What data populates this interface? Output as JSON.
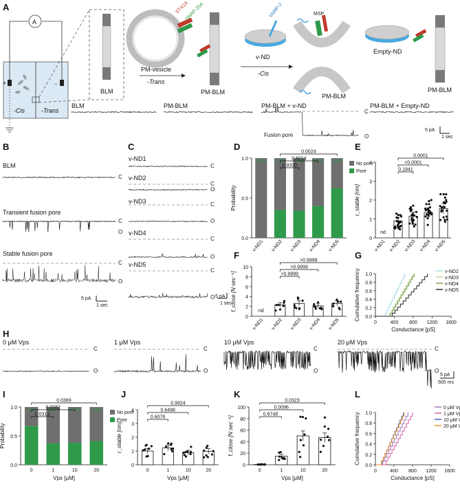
{
  "panels": {
    "a": "A",
    "b": "B",
    "c": "C",
    "d": "D",
    "e": "E",
    "f": "F",
    "g": "G",
    "h": "H",
    "i": "I",
    "j": "J",
    "k": "K",
    "l": "L"
  },
  "A": {
    "ammeter": "A",
    "plus": "+",
    "minus": "-",
    "cis": "-Cis",
    "trans": "-Trans",
    "blm": "BLM",
    "stx1a": "STX1A",
    "snap25a": "SNAP-25A",
    "pm_vesicle": "PM-vesicle",
    "trans_arrow": "-Trans",
    "pm_blm": "PM-BLM",
    "vamp2": "VAMP-2",
    "msp": "MSP",
    "v_nd": "v-ND",
    "cis_arrow": "-Cis",
    "empty_nd": "Empty-ND",
    "trace_labels": [
      "BLM",
      "PM-BLM",
      "PM-BLM + v-ND",
      "PM-BLM + Empty-ND"
    ],
    "c": "C",
    "o": "O",
    "fusion_pore": "Fusion pore",
    "scale_pa": "5 pA",
    "scale_time": "1 sec"
  },
  "B": {
    "labels": [
      "BLM",
      "Transient fusion pore",
      "Stable fusion pore"
    ],
    "c": "C",
    "o": "O",
    "scale_pa": "5 pA",
    "scale_time": "1 sec"
  },
  "C": {
    "labels": [
      "v-ND1",
      "v-ND2",
      "v-ND3",
      "v-ND4",
      "v-ND5"
    ],
    "c": "C",
    "o": "O",
    "scale_pa": "5 pA",
    "scale_time": "1 sec"
  },
  "H": {
    "labels": [
      "0 μM Vps",
      "1 μM Vps",
      "10 μM Vps",
      "20 μM Vps"
    ],
    "c": "C",
    "o": "O",
    "scale_pa": "5 pA",
    "scale_time": "500 ms"
  },
  "chart_data": [
    {
      "id": "D",
      "type": "bar",
      "categories": [
        "v-ND1",
        "v-ND2",
        "v-ND3",
        "v-ND4",
        "v-ND5"
      ],
      "series": [
        {
          "name": "Pore",
          "values": [
            0.0,
            0.35,
            0.34,
            0.4,
            0.62
          ],
          "color": "#2e9a4a"
        },
        {
          "name": "No pore",
          "values": [
            1.0,
            0.65,
            0.66,
            0.6,
            0.38
          ],
          "color": "#6f6f6f"
        }
      ],
      "value_labels": [
        "0.00",
        "0.35",
        "0.34",
        "0.40",
        "0.62"
      ],
      "ylabel": "Probability",
      "ylim": [
        0,
        1
      ],
      "yticks": [
        "0.0",
        "0.5",
        "1.0"
      ],
      "legend": "top-right",
      "pvalues": [
        "0.0024",
        "0.6014",
        "0.9330"
      ]
    },
    {
      "id": "E",
      "type": "bar",
      "categories": [
        "v-ND1",
        "v-ND2",
        "v-ND3",
        "v-ND4",
        "v-ND5"
      ],
      "values": [
        null,
        0.9,
        1.15,
        1.35,
        1.55
      ],
      "nd": "nd",
      "ylabel": "r_stable [nm]",
      "ylim": [
        0,
        4
      ],
      "yticks": [
        "0",
        "1",
        "2",
        "3",
        "4"
      ],
      "pvalues": [
        "0.0001",
        "<0.0001",
        "0.1941"
      ]
    },
    {
      "id": "F",
      "type": "bar",
      "categories": [
        "v-ND1",
        "v-ND2",
        "v-ND3",
        "v-ND4",
        "v-ND5"
      ],
      "values": [
        null,
        2.3,
        2.6,
        2.1,
        2.6
      ],
      "nd": "nd",
      "ylabel": "f_close [N sec⁻¹]",
      "ylim": [
        0,
        10
      ],
      "yticks": [
        "0",
        "2",
        "4",
        "6",
        "8",
        "10"
      ],
      "pvalues": [
        ">0.9999",
        ">0.9999",
        ">0.9999"
      ]
    },
    {
      "id": "G",
      "type": "line",
      "series": [
        {
          "name": "v-ND2",
          "color": "#a8d8e8"
        },
        {
          "name": "v-ND3",
          "color": "#b9d79a"
        },
        {
          "name": "v-ND4",
          "color": "#7d9a4a"
        },
        {
          "name": "v-ND5",
          "color": "#222222"
        }
      ],
      "xlabel": "Conductance [pS]",
      "ylabel": "Cumulative frequency",
      "xticks": [
        "0",
        "400",
        "800",
        "1200",
        "1600"
      ],
      "yticks": [
        "0.0",
        "0.2",
        "0.4",
        "0.6",
        "0.8",
        "1.0"
      ],
      "legend": "top-right"
    },
    {
      "id": "I",
      "type": "bar",
      "categories": [
        "0",
        "1",
        "10",
        "20"
      ],
      "series": [
        {
          "name": "Pore",
          "values": [
            0.67,
            0.37,
            0.38,
            0.41
          ],
          "color": "#2e9a4a"
        },
        {
          "name": "No pore",
          "values": [
            0.33,
            0.63,
            0.62,
            0.59
          ],
          "color": "#6f6f6f"
        }
      ],
      "value_labels": [
        "0.67",
        "0.37",
        "0.38",
        "0.41"
      ],
      "xlabel": "Vps [μM]",
      "ylabel": "Probability",
      "ylim": [
        0,
        1
      ],
      "yticks": [
        "0.0",
        "0.5",
        "1.0"
      ],
      "legend": "top-right",
      "pvalues": [
        "0.0369",
        "0.0082",
        "0.0313"
      ]
    },
    {
      "id": "J",
      "type": "bar",
      "categories": [
        "0",
        "1",
        "10",
        "20"
      ],
      "values": [
        1.0,
        1.22,
        0.88,
        0.98
      ],
      "xlabel": "Vps [μM]",
      "ylabel": "r_stable [nm]",
      "ylim": [
        0,
        4
      ],
      "yticks": [
        "0",
        "1",
        "2",
        "3",
        "4"
      ],
      "pvalues": [
        "0.9924",
        "0.6498",
        "0.6078"
      ]
    },
    {
      "id": "K",
      "type": "bar",
      "categories": [
        "0",
        "1",
        "10",
        "20"
      ],
      "values": [
        0.5,
        15,
        50,
        47
      ],
      "xlabel": "Vps [μM]",
      "ylabel": "f_close [N sec⁻¹]",
      "ylim": [
        0,
        100
      ],
      "yticks": [
        "0",
        "20",
        "40",
        "60",
        "80",
        "100"
      ],
      "pvalues": [
        "0.0323",
        "0.0096",
        "0.6748"
      ]
    },
    {
      "id": "L",
      "type": "line",
      "series": [
        {
          "name": "0 μM Vps",
          "color": "#9b6fb8"
        },
        {
          "name": "1 μM Vps",
          "color": "#d65aa0"
        },
        {
          "name": "10 μM Vps",
          "color": "#2f5fb0"
        },
        {
          "name": "20 μM Vps",
          "color": "#f08a24"
        }
      ],
      "xlabel": "Conductance [pS]",
      "ylabel": "Cumulative frequency",
      "xticks": [
        "0",
        "400",
        "800",
        "1200",
        "1600"
      ],
      "yticks": [
        "0.0",
        "0.2",
        "0.4",
        "0.6",
        "0.8",
        "1.0"
      ],
      "legend": "top-right"
    }
  ]
}
